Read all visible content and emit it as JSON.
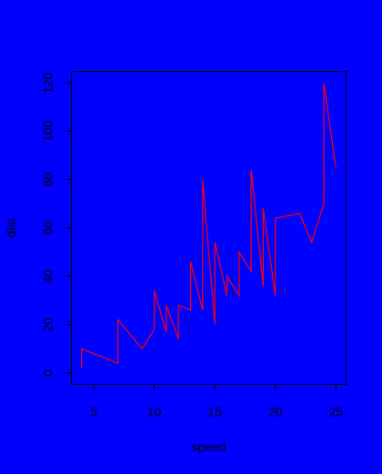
{
  "colors": {
    "background": "#0000ff",
    "line": "#ff0000",
    "axis": "#000000"
  },
  "chart_data": {
    "type": "line",
    "title": "",
    "xlabel": "speed",
    "ylabel": "dist",
    "xlim": [
      3.16,
      25.84
    ],
    "ylim": [
      -4.72,
      124.72
    ],
    "xticks": [
      5,
      10,
      15,
      20,
      25
    ],
    "yticks": [
      0,
      20,
      40,
      60,
      80,
      100,
      120
    ],
    "grid": false,
    "legend": "none",
    "series": [
      {
        "x": [
          4,
          4,
          7,
          7,
          8,
          9,
          10,
          10,
          10,
          11,
          11,
          12,
          12,
          12,
          12,
          13,
          13,
          13,
          13,
          14,
          14,
          14,
          14,
          15,
          15,
          15,
          16,
          16,
          17,
          17,
          17,
          18,
          18,
          18,
          18,
          19,
          19,
          19,
          20,
          20,
          20,
          20,
          20,
          22,
          23,
          24,
          24,
          24,
          24,
          25
        ],
        "y": [
          2,
          10,
          4,
          22,
          16,
          10,
          18,
          26,
          34,
          17,
          28,
          14,
          20,
          24,
          28,
          26,
          34,
          34,
          46,
          26,
          36,
          60,
          80,
          20,
          26,
          54,
          32,
          40,
          32,
          40,
          50,
          42,
          56,
          76,
          84,
          36,
          46,
          68,
          32,
          48,
          52,
          56,
          64,
          66,
          54,
          70,
          92,
          93,
          120,
          85
        ]
      }
    ]
  }
}
